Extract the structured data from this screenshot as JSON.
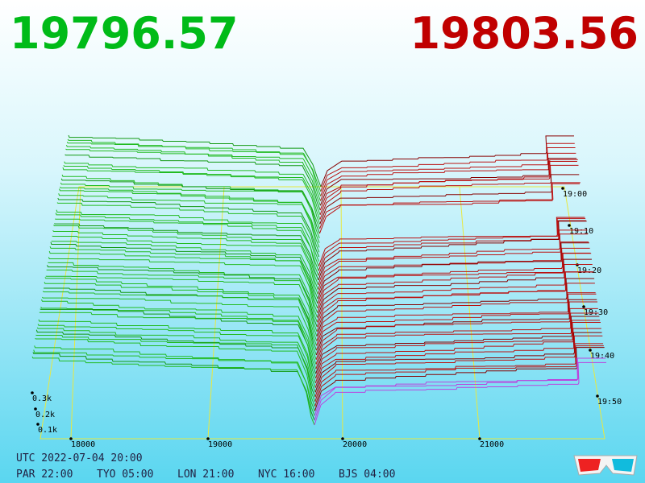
{
  "header": {
    "bid": "19796.57",
    "ask": "19803.56"
  },
  "price_axis": {
    "labels": [
      "18000",
      "19000",
      "20000",
      "21000"
    ]
  },
  "time_axis": {
    "labels": [
      "19:00",
      "19:10",
      "19:20",
      "19:30",
      "19:40",
      "19:50"
    ]
  },
  "depth_axis": {
    "labels": [
      "0.3k",
      "0.2k",
      "0.1k"
    ]
  },
  "footer": {
    "utc": "UTC 2022-07-04 20:00",
    "zones": [
      "PAR 22:00",
      "TYO 05:00",
      "LON 21:00",
      "NYC 16:00",
      "BJS 04:00"
    ]
  }
}
